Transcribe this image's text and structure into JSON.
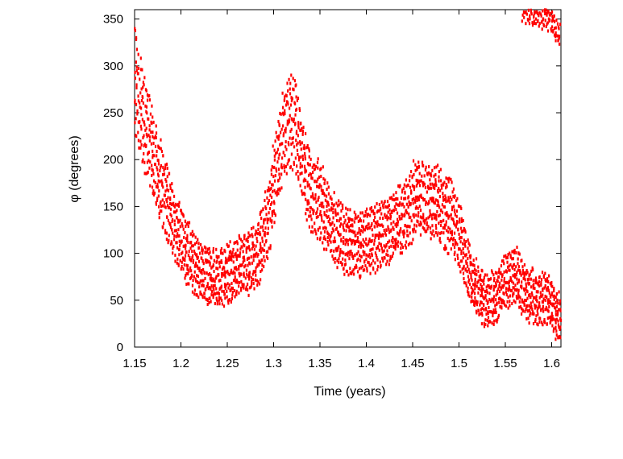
{
  "chart_data": {
    "type": "scatter",
    "title": "",
    "xlabel": "Time (years)",
    "ylabel": "φ (degrees)",
    "xlim": [
      1.15,
      1.61
    ],
    "ylim": [
      0,
      360
    ],
    "x_ticks": [
      "1.15",
      "1.2",
      "1.25",
      "1.3",
      "1.35",
      "1.4",
      "1.45",
      "1.5",
      "1.55",
      "1.6"
    ],
    "y_ticks": [
      "0",
      "50",
      "100",
      "150",
      "200",
      "250",
      "300",
      "350"
    ],
    "grid": false,
    "legend": "none",
    "marker_color": "#ff0000",
    "series": [
      {
        "note": "dense oscillating point cloud; values read off the plot",
        "x": [
          1.15,
          1.155,
          1.16,
          1.165,
          1.17,
          1.175,
          1.18,
          1.185,
          1.19,
          1.195,
          1.2,
          1.205,
          1.21,
          1.215,
          1.22,
          1.225,
          1.23,
          1.235,
          1.24,
          1.245,
          1.25,
          1.255,
          1.26,
          1.265,
          1.27,
          1.275,
          1.28,
          1.285,
          1.29,
          1.295,
          1.3,
          1.305,
          1.31,
          1.315,
          1.32,
          1.325,
          1.33,
          1.335,
          1.34,
          1.345,
          1.35,
          1.355,
          1.36,
          1.365,
          1.37,
          1.375,
          1.38,
          1.385,
          1.39,
          1.395,
          1.4,
          1.405,
          1.41,
          1.415,
          1.42,
          1.425,
          1.43,
          1.435,
          1.44,
          1.445,
          1.45,
          1.455,
          1.46,
          1.465,
          1.47,
          1.475,
          1.48,
          1.485,
          1.49,
          1.495,
          1.5,
          1.505,
          1.51,
          1.515,
          1.52,
          1.525,
          1.53,
          1.535,
          1.54,
          1.545,
          1.55,
          1.555,
          1.56,
          1.565,
          1.57,
          1.575,
          1.58,
          1.585,
          1.59,
          1.595,
          1.6,
          1.605,
          1.61
        ],
        "y": [
          290,
          260,
          240,
          225,
          205,
          185,
          170,
          155,
          140,
          125,
          115,
          105,
          95,
          88,
          82,
          78,
          75,
          74,
          74,
          76,
          78,
          80,
          84,
          88,
          90,
          92,
          95,
          105,
          120,
          140,
          170,
          200,
          225,
          240,
          245,
          230,
          205,
          180,
          165,
          160,
          155,
          145,
          135,
          128,
          120,
          115,
          112,
          110,
          110,
          110,
          112,
          115,
          118,
          120,
          123,
          126,
          130,
          135,
          140,
          145,
          155,
          160,
          158,
          155,
          155,
          155,
          150,
          145,
          140,
          132,
          120,
          100,
          85,
          70,
          60,
          55,
          50,
          50,
          55,
          62,
          68,
          72,
          75,
          70,
          60,
          55,
          55,
          50,
          52,
          50,
          45,
          35,
          25
        ]
      },
      {
        "note": "wrapped branch near 360 degrees",
        "x": [
          1.568,
          1.575,
          1.58,
          1.585,
          1.59,
          1.595,
          1.6,
          1.605
        ],
        "y": [
          358,
          357,
          356,
          354,
          353,
          352,
          350,
          335
        ]
      }
    ]
  }
}
